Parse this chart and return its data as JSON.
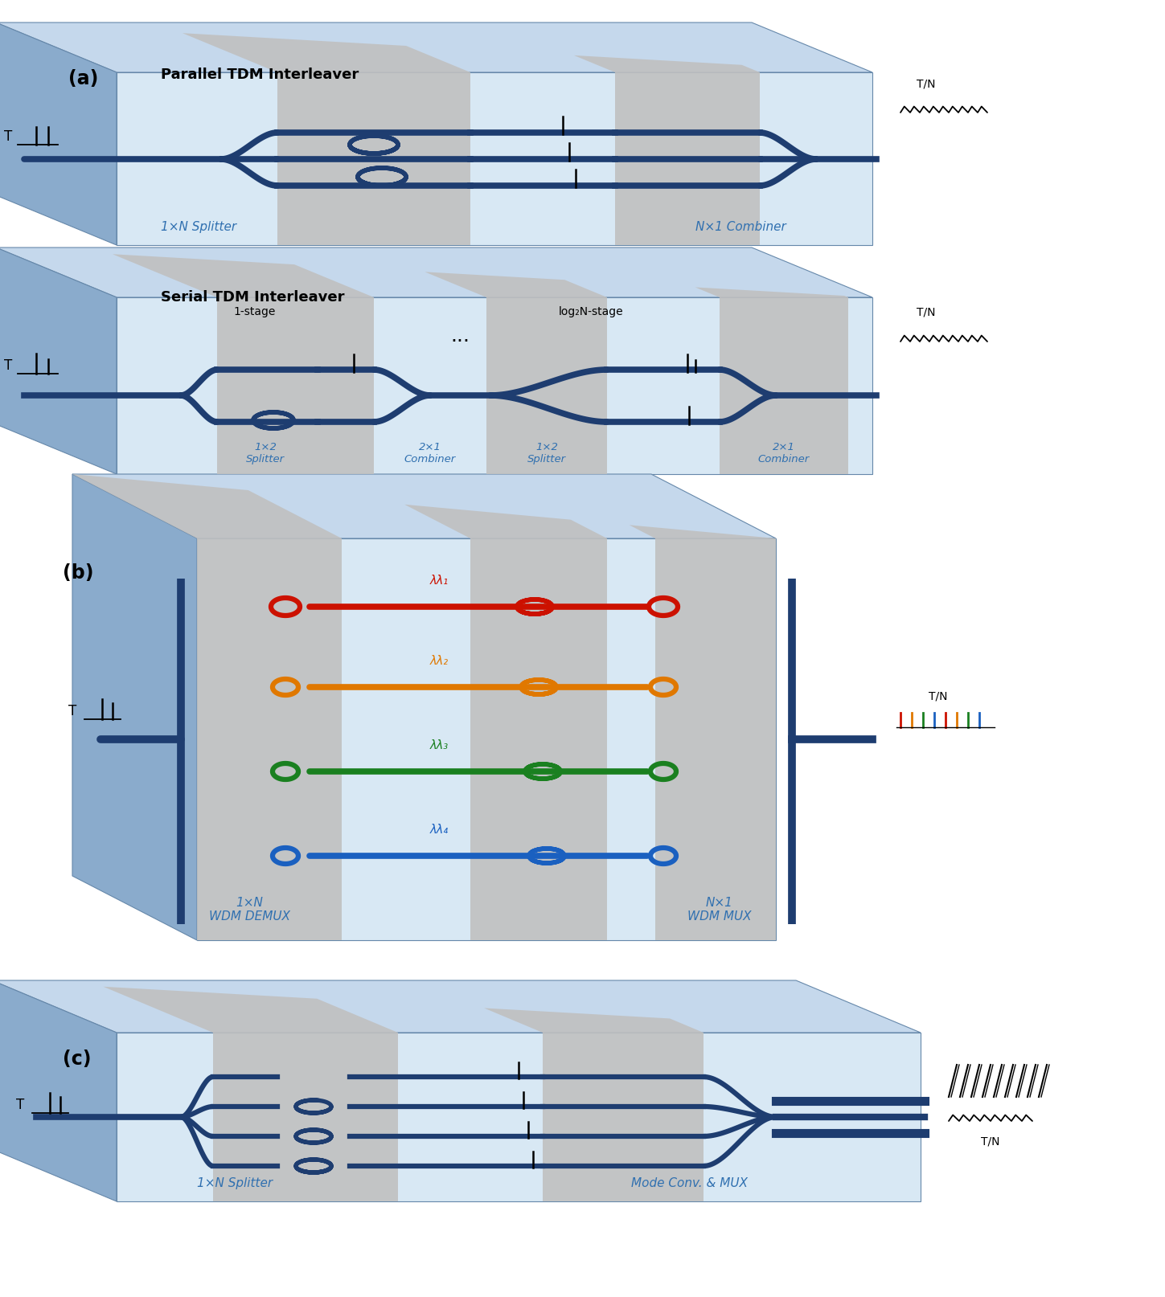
{
  "bg_color": "#ffffff",
  "chip_top_blue": "#c5d8ec",
  "chip_front_blue": "#d8e8f4",
  "chip_side_blue": "#8aabcc",
  "chip_gray_panel": "#c8c8c8",
  "chip_gray_panel2": "#d0d0d0",
  "waveguide_dark": "#1e3d70",
  "waveguide_mid": "#2555a0",
  "label_blue": "#3070b0",
  "text_black": "#111111",
  "wdm_red": "#cc1100",
  "wdm_orange": "#e07800",
  "wdm_green": "#1a8020",
  "wdm_blue": "#1a60c0",
  "sections": {
    "a_parallel": {
      "label": "(a)",
      "title": "Parallel TDM Interleaver",
      "splitter": "1×N Splitter",
      "combiner": "N×1 Combiner"
    },
    "a_serial": {
      "title": "Serial TDM Interleaver",
      "stage1": "1-stage",
      "splitter12": "1×2\nSplitter",
      "combiner21_1": "2×1\nCombiner",
      "splitter12_2": "1×2\nSplitter",
      "combiner21_2": "2×1\nCombiner",
      "log2n": "log₂N-stage"
    },
    "b": {
      "label": "(b)",
      "demux": "1×N\nWDM DEMUX",
      "mux": "N×1\nWDM MUX",
      "lambda1": "λλ₁",
      "lambda2": "λλ₂",
      "lambda3": "λλ₃",
      "lambda4": "λλ₄"
    },
    "c": {
      "label": "(c)",
      "splitter": "1×N Splitter",
      "mode_conv": "Mode Conv. & MUX"
    }
  }
}
